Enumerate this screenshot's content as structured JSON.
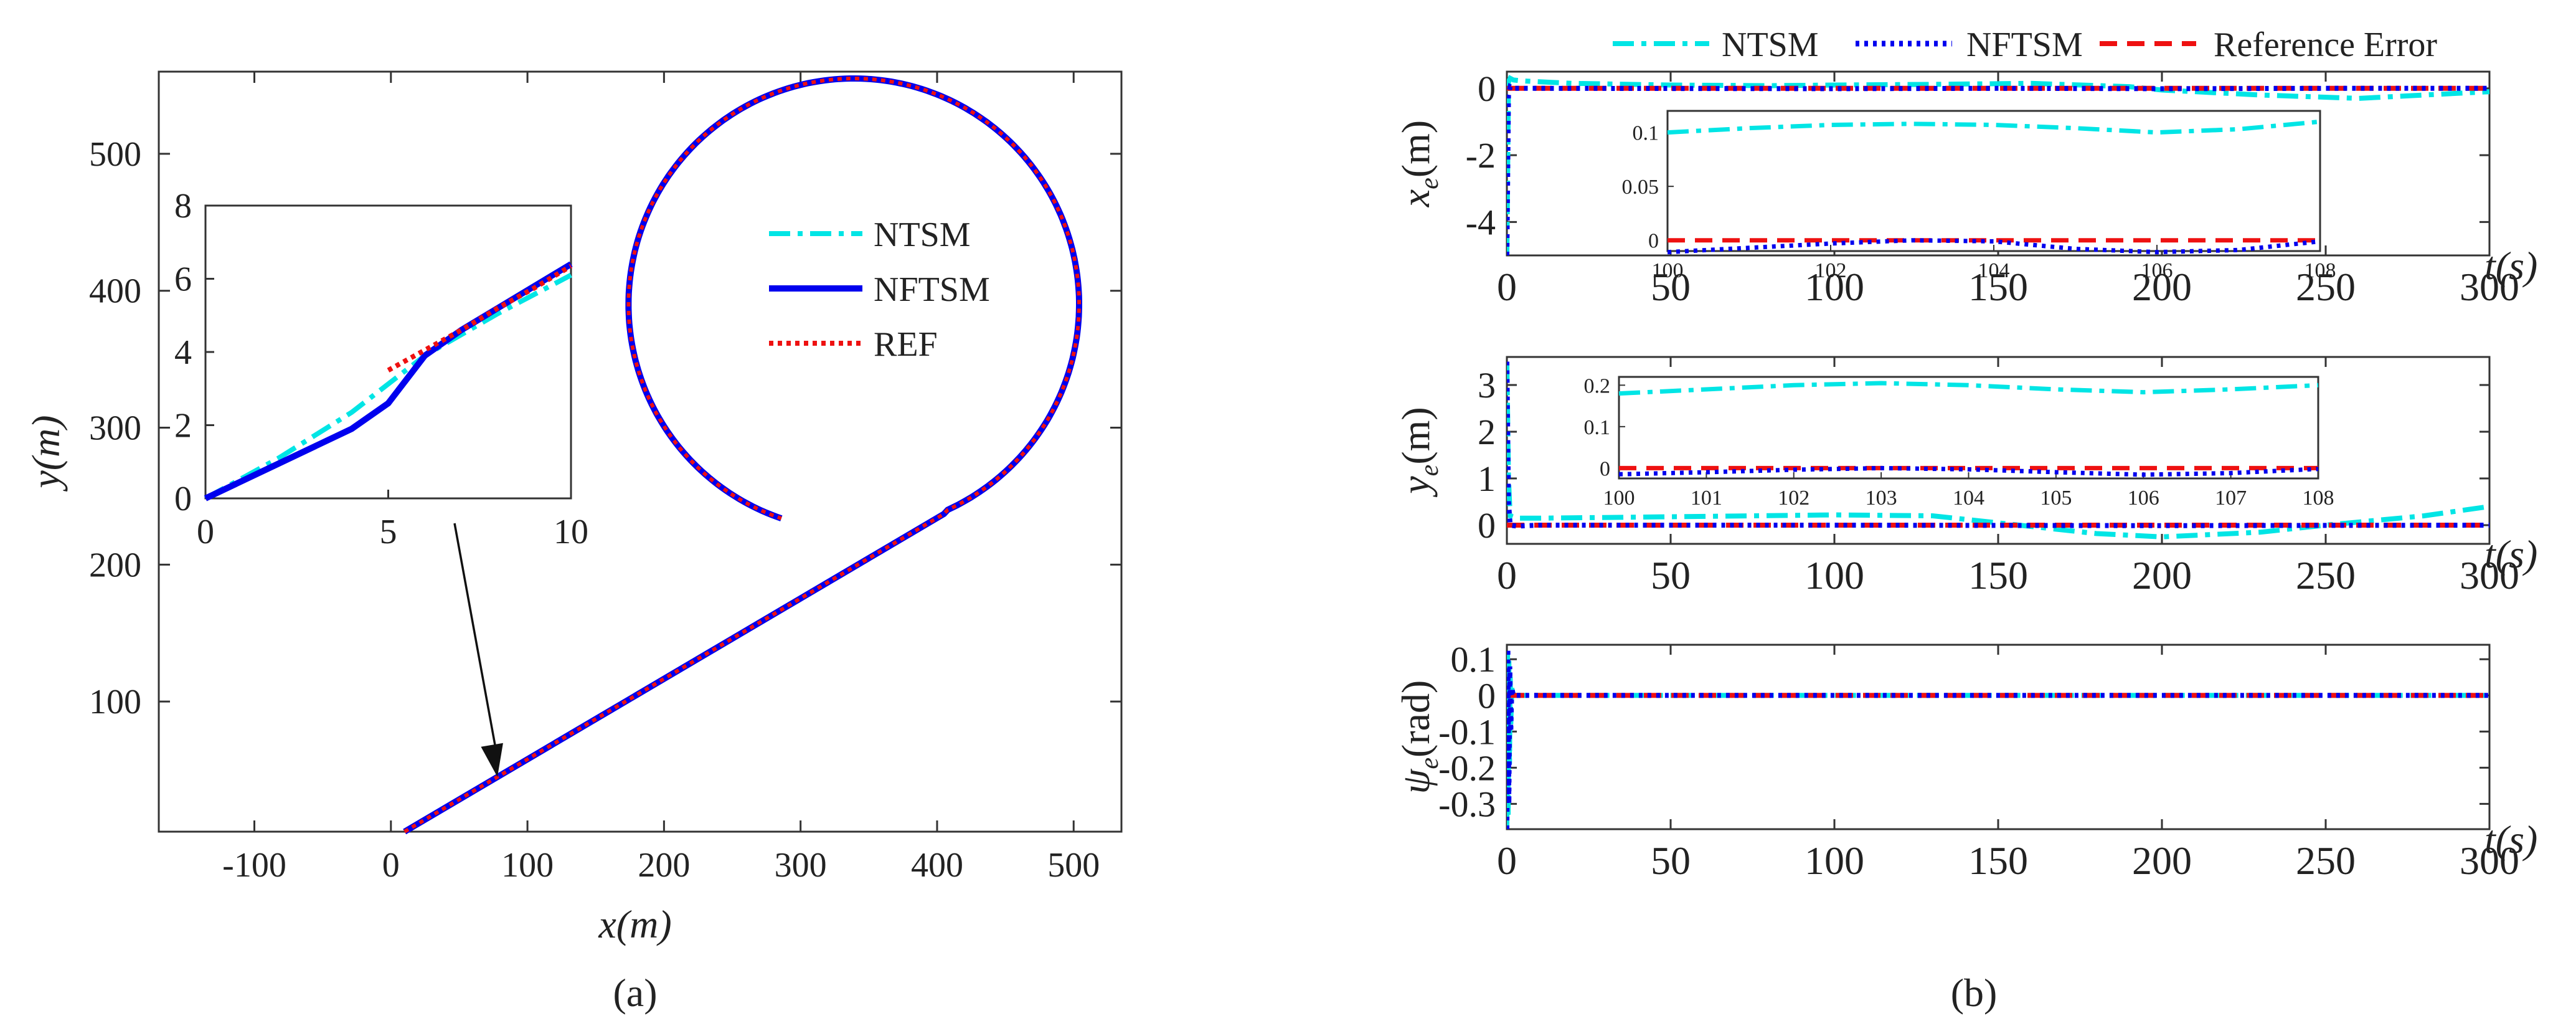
{
  "panels": {
    "a": {
      "label": "(a)"
    },
    "b": {
      "label": "(b)"
    }
  },
  "chart_data": [
    {
      "id": "trajectory",
      "type": "line",
      "title": "",
      "xlabel": "x(m)",
      "ylabel": "y(m)",
      "xlim": [
        -170,
        535
      ],
      "ylim": [
        5,
        560
      ],
      "xticks": [
        -100,
        0,
        100,
        200,
        300,
        400,
        500
      ],
      "yticks": [
        100,
        200,
        300,
        400,
        500
      ],
      "legend": [
        "NTSM",
        "NFTSM",
        "REF"
      ],
      "legend_position": "right-center",
      "path": {
        "line_start": [
          10,
          5
        ],
        "line_end": [
          405,
          237
        ],
        "circle_center": [
          339,
          390
        ],
        "circle_radius": 165,
        "end_point": [
          287,
          237
        ]
      },
      "series": [
        {
          "name": "NTSM",
          "color": "#00e5e5",
          "style": "dash-dot"
        },
        {
          "name": "NFTSM",
          "color": "#0000ee",
          "style": "solid"
        },
        {
          "name": "REF",
          "color": "#ee1111",
          "style": "dotted"
        }
      ],
      "inset": {
        "xlim": [
          0,
          10
        ],
        "ylim": [
          0,
          8
        ],
        "xticks": [
          0,
          5,
          10
        ],
        "yticks": [
          0,
          2,
          4,
          6,
          8
        ],
        "series": [
          {
            "name": "NTSM",
            "x": [
              0,
              2,
              4,
              6,
              8,
              10
            ],
            "y": [
              0,
              1.1,
              2.35,
              3.9,
              5.05,
              6.1
            ]
          },
          {
            "name": "NFTSM",
            "x": [
              0,
              2,
              4,
              5,
              6,
              7,
              8,
              10
            ],
            "y": [
              0,
              0.95,
              1.9,
              2.6,
              3.9,
              4.6,
              5.2,
              6.4
            ]
          },
          {
            "name": "REF",
            "x": [
              5,
              6,
              7,
              8,
              9,
              10
            ],
            "y": [
              3.5,
              4.05,
              4.6,
              5.2,
              5.75,
              6.35
            ]
          }
        ],
        "arrow_target": [
          78,
          45
        ]
      }
    },
    {
      "id": "xe",
      "type": "line",
      "ylabel": "x_e(m)",
      "ylabel_main": "x",
      "ylabel_sub": "e",
      "ylabel_unit": "(m)",
      "xlabel": "t(s)",
      "xlim": [
        0,
        300
      ],
      "ylim": [
        -5,
        0.5
      ],
      "xticks": [
        0,
        50,
        100,
        150,
        200,
        250,
        300
      ],
      "yticks": [
        -4,
        -2,
        0
      ],
      "series": [
        {
          "name": "NTSM",
          "color": "#00e5e5",
          "x": [
            0,
            0.5,
            1,
            2,
            5,
            20,
            50,
            80,
            100,
            130,
            160,
            190,
            200,
            230,
            260,
            300
          ],
          "y": [
            -5,
            0.2,
            0.3,
            0.25,
            0.22,
            0.15,
            0.1,
            0.08,
            0.1,
            0.12,
            0.15,
            0.05,
            -0.05,
            -0.2,
            -0.3,
            -0.1
          ]
        },
        {
          "name": "NFTSM",
          "color": "#0000ee",
          "x": [
            0,
            0.5,
            1,
            2,
            10,
            100,
            150,
            200,
            250,
            300
          ],
          "y": [
            -5,
            -0.2,
            0.05,
            0.0,
            0.0,
            -0.01,
            0.0,
            -0.01,
            0.0,
            0.0
          ]
        },
        {
          "name": "Reference Error",
          "color": "#ee1111",
          "x": [
            0,
            300
          ],
          "y": [
            0,
            0
          ]
        }
      ],
      "inset": {
        "xlim": [
          100,
          108
        ],
        "ylim": [
          -0.01,
          0.12
        ],
        "xticks": [
          100,
          102,
          104,
          106,
          108
        ],
        "yticks": [
          0,
          0.05,
          0.1
        ],
        "series": [
          {
            "name": "NTSM",
            "x": [
              100,
              101,
              102,
              103,
              104,
              105,
              106,
              107,
              108
            ],
            "y": [
              0.1,
              0.104,
              0.107,
              0.108,
              0.107,
              0.104,
              0.1,
              0.103,
              0.11
            ]
          },
          {
            "name": "NFTSM",
            "x": [
              100,
              101,
              102,
              103,
              104,
              105,
              106,
              107,
              108
            ],
            "y": [
              -0.011,
              -0.007,
              -0.003,
              0.0,
              -0.001,
              -0.008,
              -0.011,
              -0.009,
              -0.001
            ]
          },
          {
            "name": "Reference Error",
            "x": [
              100,
              108
            ],
            "y": [
              0,
              0
            ]
          }
        ]
      }
    },
    {
      "id": "ye",
      "type": "line",
      "ylabel": "y_e(m)",
      "ylabel_main": "y",
      "ylabel_sub": "e",
      "ylabel_unit": "(m)",
      "xlabel": "t(s)",
      "xlim": [
        0,
        300
      ],
      "ylim": [
        -0.4,
        3.6
      ],
      "xticks": [
        0,
        50,
        100,
        150,
        200,
        250,
        300
      ],
      "yticks": [
        0,
        1,
        2,
        3
      ],
      "series": [
        {
          "name": "NTSM",
          "color": "#00e5e5",
          "x": [
            0,
            0.5,
            1,
            3,
            10,
            50,
            100,
            130,
            150,
            180,
            200,
            230,
            250,
            280,
            300
          ],
          "y": [
            3.5,
            1.0,
            0.2,
            0.15,
            0.15,
            0.18,
            0.22,
            0.2,
            0.05,
            -0.18,
            -0.25,
            -0.15,
            0.0,
            0.2,
            0.4
          ]
        },
        {
          "name": "NFTSM",
          "color": "#0000ee",
          "x": [
            0,
            0.5,
            1,
            3,
            10,
            100,
            200,
            300
          ],
          "y": [
            3.5,
            0.5,
            0.0,
            -0.02,
            0.0,
            0.0,
            -0.01,
            0.0
          ]
        },
        {
          "name": "Reference Error",
          "color": "#ee1111",
          "x": [
            0,
            300
          ],
          "y": [
            0,
            0
          ]
        }
      ],
      "inset": {
        "xlim": [
          100,
          108
        ],
        "ylim": [
          -0.025,
          0.22
        ],
        "xticks": [
          100,
          101,
          102,
          103,
          104,
          105,
          106,
          107,
          108
        ],
        "yticks": [
          0,
          0.1,
          0.2
        ],
        "series": [
          {
            "name": "NTSM",
            "x": [
              100,
              101,
              102,
              103,
              104,
              105,
              106,
              107,
              108
            ],
            "y": [
              0.18,
              0.19,
              0.2,
              0.205,
              0.2,
              0.19,
              0.183,
              0.19,
              0.2
            ]
          },
          {
            "name": "NFTSM",
            "x": [
              100,
              101,
              102,
              103,
              104,
              105,
              106,
              107,
              108
            ],
            "y": [
              -0.015,
              -0.01,
              -0.004,
              0.0,
              -0.003,
              -0.01,
              -0.016,
              -0.012,
              -0.002
            ]
          },
          {
            "name": "Reference Error",
            "x": [
              100,
              108
            ],
            "y": [
              0,
              0
            ]
          }
        ]
      }
    },
    {
      "id": "psie",
      "type": "line",
      "ylabel": "ψ_e(rad)",
      "ylabel_main": "ψ",
      "ylabel_sub": "e",
      "ylabel_unit": "(rad)",
      "xlabel": "t(s)",
      "xlim": [
        0,
        300
      ],
      "ylim": [
        -0.37,
        0.14
      ],
      "xticks": [
        0,
        50,
        100,
        150,
        200,
        250,
        300
      ],
      "yticks": [
        -0.3,
        -0.2,
        -0.1,
        0,
        0.1
      ],
      "series": [
        {
          "name": "NTSM",
          "color": "#00e5e5",
          "x": [
            0,
            0.2,
            0.4,
            0.6,
            0.8,
            1.0,
            1.2,
            1.5,
            2,
            300
          ],
          "y": [
            -0.36,
            0.12,
            -0.33,
            0.1,
            -0.2,
            0.06,
            -0.08,
            0.02,
            0.0,
            0.0
          ]
        },
        {
          "name": "NFTSM",
          "color": "#0000ee",
          "x": [
            0,
            0.3,
            0.6,
            0.9,
            1.2,
            1.5,
            2,
            300
          ],
          "y": [
            -0.37,
            0.13,
            -0.3,
            0.08,
            -0.1,
            0.02,
            0.0,
            0.0
          ]
        },
        {
          "name": "Reference Error",
          "color": "#ee1111",
          "x": [
            0,
            300
          ],
          "y": [
            0,
            0
          ]
        }
      ]
    }
  ],
  "legend_top": [
    {
      "name": "NTSM",
      "color": "#00e5e5"
    },
    {
      "name": "NFTSM",
      "color": "#0000ee"
    },
    {
      "name": "Reference Error",
      "color": "#ee1111"
    }
  ]
}
